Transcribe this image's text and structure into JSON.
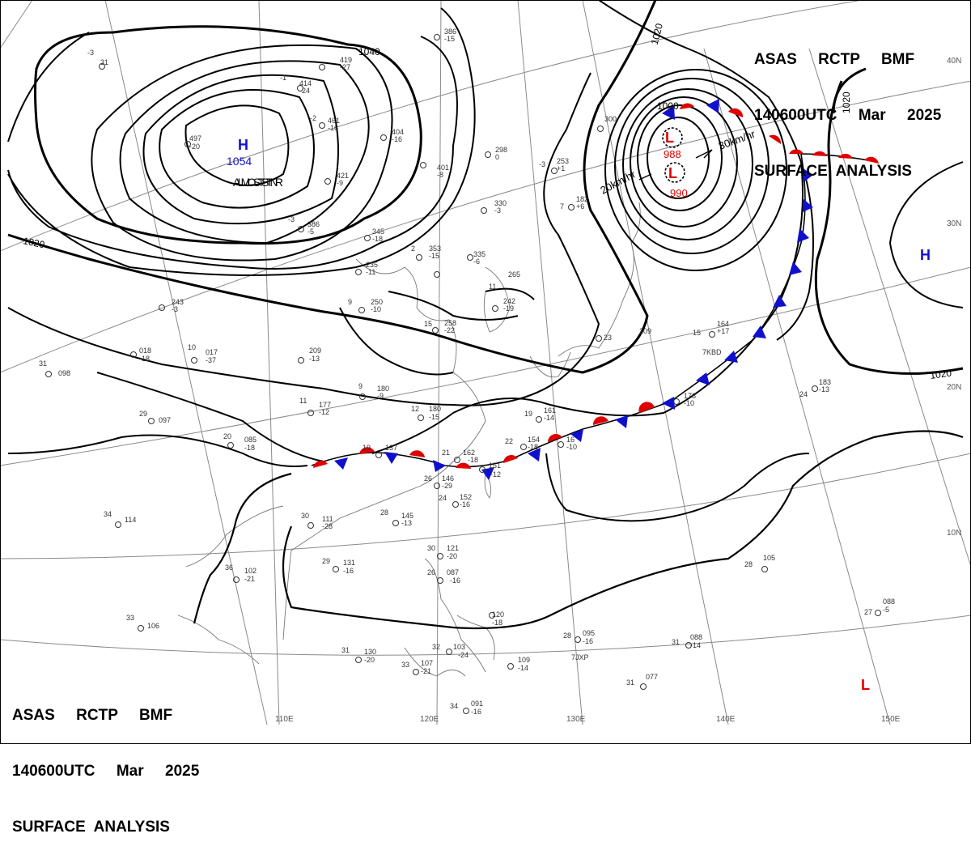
{
  "header": {
    "line1": "ASAS     RCTP     BMF",
    "line2": "140600UTC     Mar     2025",
    "line3": "SURFACE  ANALYSIS"
  },
  "isobars": {
    "label_1040": "1040",
    "label_1020": "1020",
    "label_1000": "1000"
  },
  "systems": {
    "high_main": {
      "symbol": "H",
      "pressure": "1054",
      "motion": "ALMOST STNR"
    },
    "low_main": {
      "symbol": "L",
      "pressures": [
        "988",
        "990"
      ],
      "motion": [
        "20km/hr",
        "30km/hr"
      ]
    },
    "high_east": {
      "symbol": "H"
    },
    "low_south": {
      "symbol": "L"
    }
  },
  "longitudes": [
    "110E",
    "120E",
    "130E",
    "140E",
    "150E"
  ],
  "latitudes": [
    "40N",
    "30N",
    "20N",
    "10N"
  ],
  "stations": [
    {
      "t": "-3",
      "p": "31",
      "d": ""
    },
    {
      "t": "",
      "p": "419",
      "d": "-27"
    },
    {
      "t": "-1",
      "p": "414",
      "d": "-24"
    },
    {
      "t": "-2",
      "p": "461",
      "d": "-16"
    },
    {
      "t": "",
      "p": "497",
      "d": "-20"
    },
    {
      "t": "",
      "p": "404",
      "d": "-16"
    },
    {
      "t": "",
      "p": "386",
      "d": "-15"
    },
    {
      "t": "",
      "p": "298",
      "d": "0"
    },
    {
      "t": "",
      "p": "401",
      "d": "-8"
    },
    {
      "t": "",
      "p": "421",
      "d": "-9"
    },
    {
      "t": "-3",
      "p": "386",
      "d": "-5"
    },
    {
      "t": "",
      "p": "345",
      "d": "-18"
    },
    {
      "t": "2",
      "p": "353",
      "d": "-15"
    },
    {
      "t": "",
      "p": "335",
      "d": "-6"
    },
    {
      "t": "",
      "p": "330",
      "d": "-3"
    },
    {
      "t": "-3",
      "p": "253",
      "d": "+1"
    },
    {
      "t": "",
      "p": "300",
      "d": ""
    },
    {
      "t": "7",
      "p": "182",
      "d": "+6"
    },
    {
      "t": "",
      "p": "235",
      "d": "-11"
    },
    {
      "t": "9",
      "p": "250",
      "d": "-10"
    },
    {
      "t": "11",
      "p": "265",
      "d": ""
    },
    {
      "t": "",
      "p": "242",
      "d": "-19"
    },
    {
      "t": "15",
      "p": "258",
      "d": "-22"
    },
    {
      "t": "",
      "p": "243",
      "d": "-3"
    },
    {
      "t": "",
      "p": "209",
      "d": "-13"
    },
    {
      "t": "10",
      "p": "017",
      "d": "-37"
    },
    {
      "t": "",
      "p": "018",
      "d": "-18"
    },
    {
      "t": "31",
      "p": "098",
      "d": ""
    },
    {
      "t": "9",
      "p": "180",
      "d": "-9"
    },
    {
      "t": "11",
      "p": "177",
      "d": "-12"
    },
    {
      "t": "12",
      "p": "180",
      "d": "-15"
    },
    {
      "t": "29",
      "p": "097",
      "d": ""
    },
    {
      "t": "20",
      "p": "085",
      "d": "-18"
    },
    {
      "t": "15",
      "p": "164",
      "d": "+17"
    },
    {
      "t": "23",
      "p": "209",
      "d": ""
    },
    {
      "t": "24",
      "p": "183",
      "d": "-13"
    },
    {
      "t": "",
      "p": "178",
      "d": "-10"
    },
    {
      "t": "19",
      "p": "161",
      "d": "-14"
    },
    {
      "t": "22",
      "p": "154",
      "d": "-18"
    },
    {
      "t": "",
      "p": "16",
      "d": "-10"
    },
    {
      "t": "19",
      "p": "137",
      "d": ""
    },
    {
      "t": "21",
      "p": "162",
      "d": "-18"
    },
    {
      "t": "",
      "p": "151",
      "d": "-12"
    },
    {
      "t": "26",
      "p": "146",
      "d": "-29"
    },
    {
      "t": "24",
      "p": "152",
      "d": "-16"
    },
    {
      "t": "28",
      "p": "145",
      "d": "-13"
    },
    {
      "t": "30",
      "p": "111",
      "d": "-28"
    },
    {
      "t": "34",
      "p": "114",
      "d": ""
    },
    {
      "t": "29",
      "p": "131",
      "d": "-16"
    },
    {
      "t": "36",
      "p": "102",
      "d": "-21"
    },
    {
      "t": "30",
      "p": "121",
      "d": "-20"
    },
    {
      "t": "26",
      "p": "087",
      "d": "-16"
    },
    {
      "t": "",
      "p": "120",
      "d": "-18"
    },
    {
      "t": "33",
      "p": "106",
      "d": ""
    },
    {
      "t": "31",
      "p": "130",
      "d": "-20"
    },
    {
      "t": "33",
      "p": "107",
      "d": "-21"
    },
    {
      "t": "32",
      "p": "103",
      "d": "-24"
    },
    {
      "t": "",
      "p": "109",
      "d": "-14"
    },
    {
      "t": "28",
      "p": "095",
      "d": "-16"
    },
    {
      "t": "31",
      "p": "088",
      "d": "-14"
    },
    {
      "t": "28",
      "p": "105",
      "d": ""
    },
    {
      "t": "27",
      "p": "088",
      "d": "-5"
    },
    {
      "t": "31",
      "p": "077",
      "d": ""
    },
    {
      "t": "34",
      "p": "091",
      "d": "-16"
    }
  ],
  "station_codes": [
    "7KBD",
    "7JXP"
  ],
  "colors": {
    "high": "#1010cc",
    "low": "#e00000",
    "warm": "#e00000",
    "cold": "#1010cc",
    "isobar": "#000000",
    "grid": "#888888",
    "coast": "#777777"
  }
}
